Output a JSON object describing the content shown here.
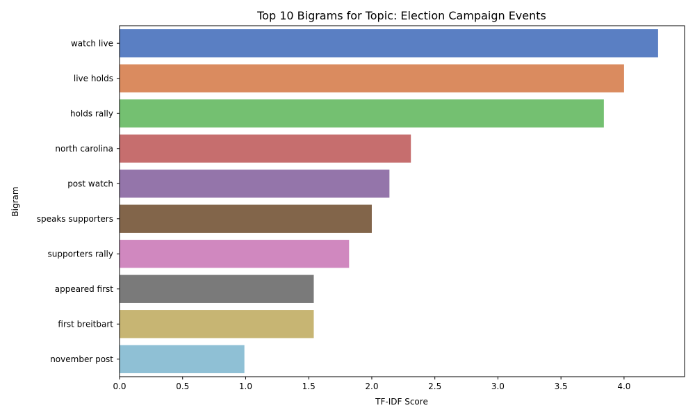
{
  "chart_data": {
    "type": "bar",
    "orientation": "horizontal",
    "title": "Top 10 Bigrams for Topic: Election Campaign Events",
    "xlabel": "TF-IDF Score",
    "ylabel": "Bigram",
    "xlim": [
      0,
      4.48
    ],
    "xticks": [
      "0.0",
      "0.5",
      "1.0",
      "1.5",
      "2.0",
      "2.5",
      "3.0",
      "3.5",
      "4.0"
    ],
    "grid": false,
    "categories": [
      "watch live",
      "live holds",
      "holds rally",
      "north carolina",
      "post watch",
      "speaks supporters",
      "supporters rally",
      "appeared first",
      "first breitbart",
      "november post"
    ],
    "values": [
      4.27,
      4.0,
      3.84,
      2.31,
      2.14,
      2.0,
      1.82,
      1.54,
      1.54,
      0.99
    ],
    "colors": [
      "#5a7fc3",
      "#da8b5f",
      "#74c071",
      "#c66e6e",
      "#9475aa",
      "#82654a",
      "#d088bf",
      "#7a7a7a",
      "#c7b573",
      "#8fc0d5"
    ]
  }
}
